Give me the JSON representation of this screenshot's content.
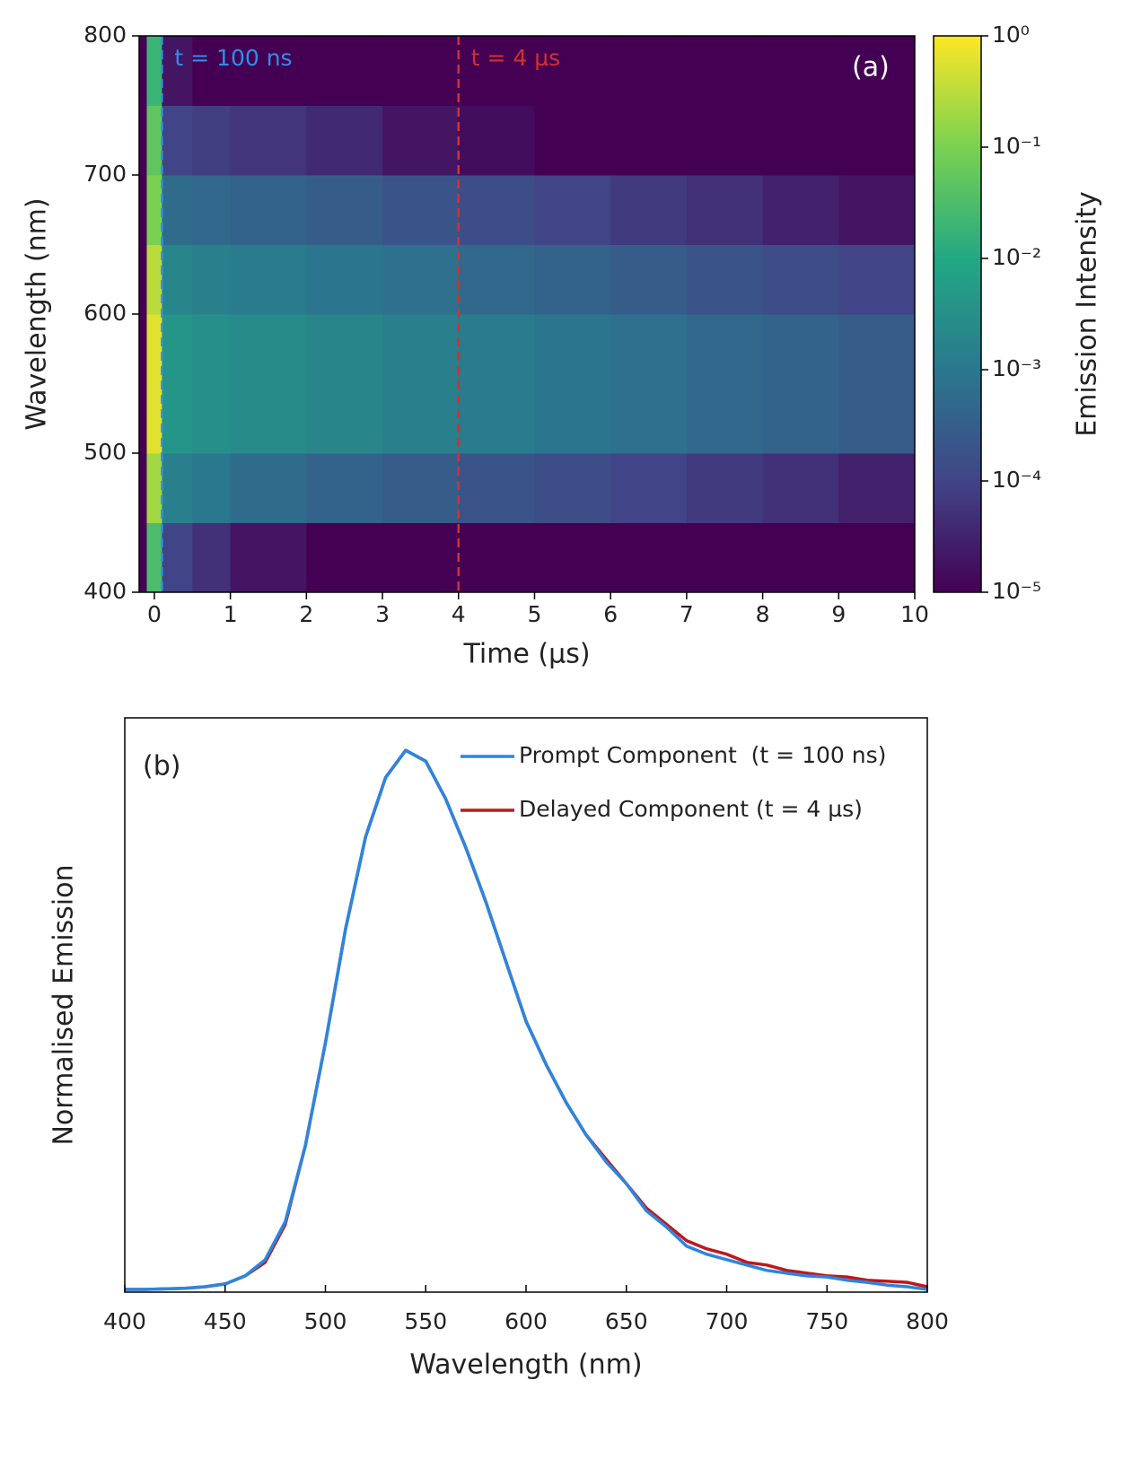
{
  "chart_data": [
    {
      "type": "heatmap",
      "panel_label": "(a)",
      "xlabel": "Time (µs)",
      "ylabel": "Wavelength (nm)",
      "colorbar_label": "Emission Intensity",
      "xlim": [
        -0.2,
        10
      ],
      "xticks": [
        0,
        1,
        2,
        3,
        4,
        5,
        6,
        7,
        8,
        9,
        10
      ],
      "ylim": [
        400,
        800
      ],
      "yticks": [
        400,
        500,
        600,
        700,
        800
      ],
      "x_edges": [
        -0.1,
        0.1,
        0.5,
        1,
        2,
        3,
        4,
        5,
        6,
        7,
        8,
        9,
        10
      ],
      "y_edges": [
        400,
        450,
        500,
        550,
        600,
        650,
        700,
        750,
        800
      ],
      "z": [
        [
          0.03,
          0.0001,
          5e-05,
          2e-05,
          1e-05,
          1e-05,
          1e-05,
          1e-05,
          1e-05,
          1e-05,
          1e-05,
          1e-05
        ],
        [
          0.2,
          0.0015,
          0.001,
          0.0006,
          0.0004,
          0.0003,
          0.0002,
          0.00015,
          0.0001,
          7e-05,
          5e-05,
          3e-05
        ],
        [
          0.6,
          0.004,
          0.003,
          0.0025,
          0.002,
          0.0015,
          0.0012,
          0.0009,
          0.0007,
          0.0005,
          0.0004,
          0.0003
        ],
        [
          0.6,
          0.004,
          0.003,
          0.0025,
          0.002,
          0.0015,
          0.0012,
          0.0009,
          0.0007,
          0.0005,
          0.0004,
          0.0003
        ],
        [
          0.3,
          0.002,
          0.0015,
          0.0012,
          0.0009,
          0.0007,
          0.0005,
          0.0004,
          0.0003,
          0.0002,
          0.00015,
          0.0001
        ],
        [
          0.1,
          0.0006,
          0.0005,
          0.0004,
          0.0003,
          0.0002,
          0.00015,
          0.0001,
          7e-05,
          5e-05,
          3e-05,
          2e-05
        ],
        [
          0.05,
          0.0001,
          8e-05,
          6e-05,
          4e-05,
          2e-05,
          1.5e-05,
          1e-05,
          1e-05,
          1e-05,
          1e-05,
          1e-05
        ],
        [
          0.02,
          2e-05,
          1e-05,
          1e-05,
          1e-05,
          1e-05,
          1e-05,
          1e-05,
          1e-05,
          1e-05,
          1e-05,
          1e-05
        ]
      ],
      "colorscale": "viridis",
      "log_color": true,
      "clim": [
        1e-05,
        1
      ],
      "cticks": [
        {
          "value": 1e-05,
          "label": "10⁻⁵"
        },
        {
          "value": 0.0001,
          "label": "10⁻⁴"
        },
        {
          "value": 0.001,
          "label": "10⁻³"
        },
        {
          "value": 0.01,
          "label": "10⁻²"
        },
        {
          "value": 0.1,
          "label": "10⁻¹"
        },
        {
          "value": 1,
          "label": "10⁰"
        }
      ],
      "markers": [
        {
          "x": 0.1,
          "label": "t = 100 ns",
          "color": "#2f8fe8"
        },
        {
          "x": 4,
          "label": "t = 4 µs",
          "color": "#d43030"
        }
      ]
    },
    {
      "type": "line",
      "panel_label": "(b)",
      "xlabel": "Wavelength (nm)",
      "ylabel": "Normalised Emission",
      "xlim": [
        400,
        800
      ],
      "xticks": [
        400,
        450,
        500,
        550,
        600,
        650,
        700,
        750,
        800
      ],
      "ylim": [
        0,
        1.06
      ],
      "legend": "upper right",
      "x": [
        400,
        410,
        420,
        430,
        440,
        450,
        460,
        470,
        480,
        490,
        500,
        510,
        520,
        530,
        540,
        550,
        560,
        570,
        580,
        590,
        600,
        610,
        620,
        630,
        640,
        650,
        660,
        670,
        680,
        690,
        700,
        710,
        720,
        730,
        740,
        750,
        760,
        770,
        780,
        790,
        800
      ],
      "series": [
        {
          "name": "Delayed Component (t = 4 µs)",
          "color": "#c0161c",
          "values": [
            0.005,
            0.005,
            0.006,
            0.007,
            0.01,
            0.015,
            0.03,
            0.055,
            0.125,
            0.27,
            0.46,
            0.67,
            0.84,
            0.95,
            1.0,
            0.98,
            0.91,
            0.82,
            0.72,
            0.61,
            0.5,
            0.42,
            0.35,
            0.29,
            0.245,
            0.2,
            0.155,
            0.125,
            0.095,
            0.08,
            0.07,
            0.055,
            0.05,
            0.04,
            0.035,
            0.03,
            0.028,
            0.022,
            0.02,
            0.018,
            0.01
          ]
        },
        {
          "name": "Prompt Component  (t = 100 ns)",
          "color": "#2a86e0",
          "values": [
            0.005,
            0.005,
            0.006,
            0.007,
            0.01,
            0.015,
            0.03,
            0.06,
            0.13,
            0.27,
            0.46,
            0.67,
            0.84,
            0.95,
            1.0,
            0.98,
            0.91,
            0.82,
            0.72,
            0.61,
            0.5,
            0.42,
            0.35,
            0.29,
            0.24,
            0.2,
            0.15,
            0.12,
            0.085,
            0.07,
            0.06,
            0.05,
            0.04,
            0.035,
            0.03,
            0.028,
            0.022,
            0.018,
            0.013,
            0.01,
            0.005
          ]
        }
      ]
    }
  ]
}
